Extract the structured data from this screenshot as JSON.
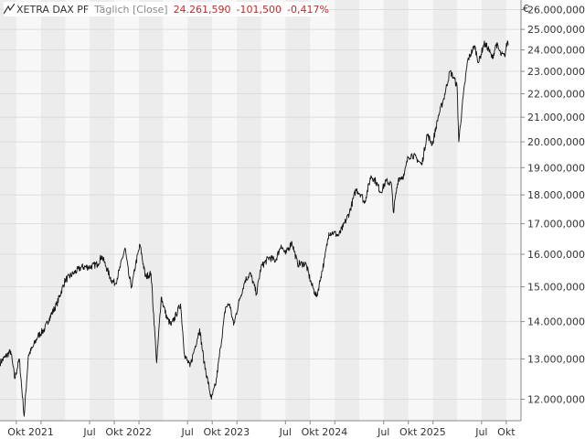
{
  "header": {
    "symbol": "XETRA DAX PF",
    "interval": "Täglich [Close]",
    "last": "24.261,590",
    "change": "-101,500",
    "change_pct": "-0,417%",
    "icon": "line-chart-icon"
  },
  "colors": {
    "up_down_negative": "#c62828",
    "line": "#111111",
    "band": "#ececec",
    "grid": "#dcdcdc",
    "text": "#333333"
  },
  "chart_data": {
    "type": "line",
    "title": "XETRA DAX PF",
    "currency_unit": "€",
    "y_scale": "log",
    "ylim": [
      11500,
      26500
    ],
    "yticks": [
      12000,
      13000,
      14000,
      15000,
      16000,
      17000,
      18000,
      19000,
      20000,
      21000,
      22000,
      23000,
      24000,
      25000,
      26000
    ],
    "ytick_labels": [
      "12.000,000",
      "13.000,000",
      "14.000,000",
      "15.000,000",
      "16.000,000",
      "17.000,000",
      "18.000,000",
      "19.000,000",
      "20.000,000",
      "21.000,000",
      "22.000,000",
      "23.000,000",
      "24.000,000",
      "25.000,000",
      "26.000,000"
    ],
    "x_range": [
      "2020-08-01",
      "2025-11-25"
    ],
    "xticks": [
      {
        "date": "2020-10-01",
        "label": "Okt"
      },
      {
        "date": "2021-01-01",
        "label": "2021"
      },
      {
        "date": "2021-07-01",
        "label": "Jul"
      },
      {
        "date": "2021-10-01",
        "label": "Okt"
      },
      {
        "date": "2022-01-01",
        "label": "2022"
      },
      {
        "date": "2022-07-01",
        "label": "Jul"
      },
      {
        "date": "2022-10-01",
        "label": "Okt"
      },
      {
        "date": "2023-01-01",
        "label": "2023"
      },
      {
        "date": "2023-07-01",
        "label": "Jul"
      },
      {
        "date": "2023-10-01",
        "label": "Okt"
      },
      {
        "date": "2024-01-01",
        "label": "2024"
      },
      {
        "date": "2024-07-01",
        "label": "Jul"
      },
      {
        "date": "2024-10-01",
        "label": "Okt"
      },
      {
        "date": "2025-01-01",
        "label": "2025"
      },
      {
        "date": "2025-07-01",
        "label": "Jul"
      },
      {
        "date": "2025-10-01",
        "label": "Okt"
      }
    ],
    "grid": true,
    "series": [
      {
        "values": [
          [
            "2020-08-01",
            12900
          ],
          [
            "2020-08-20",
            13050
          ],
          [
            "2020-09-10",
            13200
          ],
          [
            "2020-09-25",
            12500
          ],
          [
            "2020-10-12",
            13000
          ],
          [
            "2020-10-30",
            11600
          ],
          [
            "2020-11-15",
            13100
          ],
          [
            "2020-12-01",
            13300
          ],
          [
            "2020-12-20",
            13600
          ],
          [
            "2021-01-15",
            13800
          ],
          [
            "2021-02-01",
            14100
          ],
          [
            "2021-03-01",
            14500
          ],
          [
            "2021-04-01",
            15200
          ],
          [
            "2021-05-01",
            15400
          ],
          [
            "2021-06-01",
            15600
          ],
          [
            "2021-07-01",
            15600
          ],
          [
            "2021-08-01",
            15700
          ],
          [
            "2021-08-15",
            15950
          ],
          [
            "2021-09-01",
            15600
          ],
          [
            "2021-09-20",
            15200
          ],
          [
            "2021-10-05",
            15100
          ],
          [
            "2021-10-20",
            15500
          ],
          [
            "2021-11-10",
            16200
          ],
          [
            "2021-11-25",
            15300
          ],
          [
            "2021-12-05",
            15000
          ],
          [
            "2021-12-20",
            15700
          ],
          [
            "2022-01-05",
            16300
          ],
          [
            "2022-01-25",
            15300
          ],
          [
            "2022-02-15",
            15400
          ],
          [
            "2022-03-08",
            12900
          ],
          [
            "2022-03-25",
            14700
          ],
          [
            "2022-04-15",
            14100
          ],
          [
            "2022-05-01",
            13900
          ],
          [
            "2022-05-20",
            14200
          ],
          [
            "2022-06-05",
            14500
          ],
          [
            "2022-06-20",
            13100
          ],
          [
            "2022-07-10",
            12800
          ],
          [
            "2022-07-25",
            13200
          ],
          [
            "2022-08-15",
            13800
          ],
          [
            "2022-09-01",
            12900
          ],
          [
            "2022-09-28",
            12000
          ],
          [
            "2022-10-15",
            12400
          ],
          [
            "2022-11-01",
            13300
          ],
          [
            "2022-11-20",
            14400
          ],
          [
            "2022-12-05",
            14500
          ],
          [
            "2022-12-20",
            13900
          ],
          [
            "2023-01-10",
            14600
          ],
          [
            "2023-02-01",
            15200
          ],
          [
            "2023-02-20",
            15400
          ],
          [
            "2023-03-15",
            14800
          ],
          [
            "2023-04-01",
            15600
          ],
          [
            "2023-05-01",
            15900
          ],
          [
            "2023-05-25",
            15800
          ],
          [
            "2023-06-15",
            16300
          ],
          [
            "2023-07-01",
            16000
          ],
          [
            "2023-07-25",
            16400
          ],
          [
            "2023-08-15",
            15700
          ],
          [
            "2023-09-15",
            15700
          ],
          [
            "2023-10-05",
            15100
          ],
          [
            "2023-10-25",
            14700
          ],
          [
            "2023-11-10",
            15300
          ],
          [
            "2023-11-25",
            15900
          ],
          [
            "2023-12-10",
            16700
          ],
          [
            "2023-12-28",
            16700
          ],
          [
            "2024-01-15",
            16600
          ],
          [
            "2024-02-01",
            16900
          ],
          [
            "2024-02-25",
            17400
          ],
          [
            "2024-03-20",
            18200
          ],
          [
            "2024-04-10",
            18000
          ],
          [
            "2024-04-20",
            17700
          ],
          [
            "2024-05-15",
            18700
          ],
          [
            "2024-06-01",
            18500
          ],
          [
            "2024-06-20",
            18100
          ],
          [
            "2024-07-10",
            18500
          ],
          [
            "2024-07-30",
            18400
          ],
          [
            "2024-08-06",
            17400
          ],
          [
            "2024-08-25",
            18600
          ],
          [
            "2024-09-15",
            18700
          ],
          [
            "2024-09-30",
            19400
          ],
          [
            "2024-10-15",
            19500
          ],
          [
            "2024-11-05",
            19300
          ],
          [
            "2024-11-20",
            19100
          ],
          [
            "2024-12-10",
            20300
          ],
          [
            "2024-12-30",
            19900
          ],
          [
            "2025-01-20",
            21000
          ],
          [
            "2025-02-10",
            21800
          ],
          [
            "2025-03-05",
            23000
          ],
          [
            "2025-03-20",
            22700
          ],
          [
            "2025-04-01",
            22300
          ],
          [
            "2025-04-07",
            20000
          ],
          [
            "2025-04-20",
            21500
          ],
          [
            "2025-05-10",
            23500
          ],
          [
            "2025-06-05",
            24200
          ],
          [
            "2025-06-20",
            23400
          ],
          [
            "2025-07-10",
            24300
          ],
          [
            "2025-07-25",
            24100
          ],
          [
            "2025-08-10",
            23600
          ],
          [
            "2025-08-25",
            24300
          ],
          [
            "2025-09-10",
            23800
          ],
          [
            "2025-09-25",
            23700
          ],
          [
            "2025-10-05",
            24400
          ],
          [
            "2025-10-10",
            24250
          ]
        ]
      }
    ]
  }
}
